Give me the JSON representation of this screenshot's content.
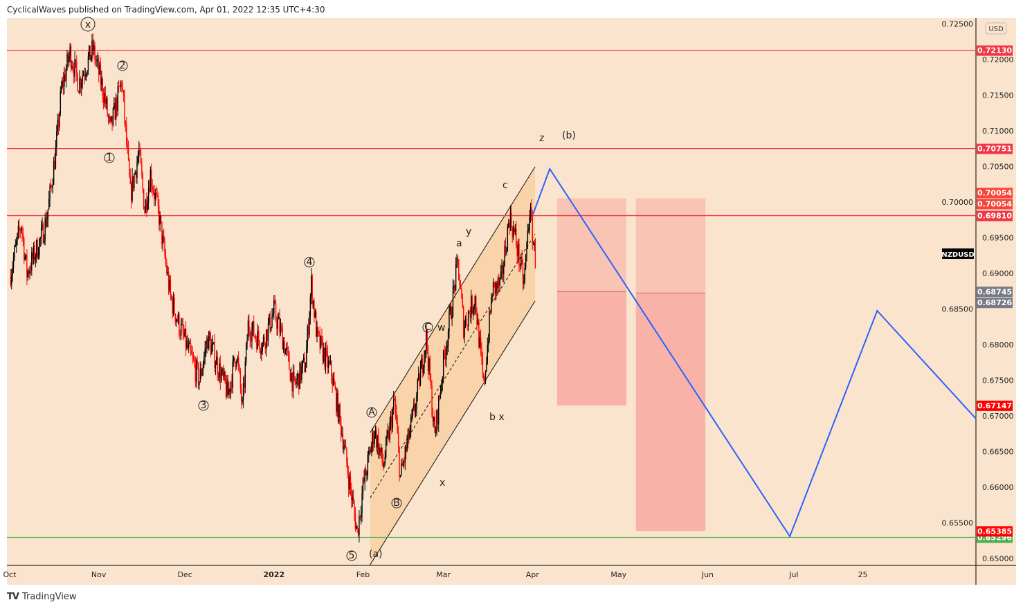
{
  "header": {
    "title": "CyclicalWaves published on TradingView.com, Apr 01, 2022 12:35 UTC+4:30"
  },
  "footer": {
    "brand": "TradingView"
  },
  "colors": {
    "bg": "#fbe4cd",
    "up": "#000000",
    "down": "#ff0000",
    "hline": "#f23645",
    "support": "#4caf50",
    "forecast": "#2962ff",
    "box": "#f8a9a0",
    "channel": "#f9cfa3"
  },
  "chart_data": {
    "type": "candlestick",
    "symbol": "NZDUSD",
    "currency": "USD",
    "ylim": [
      0.6485,
      0.7255
    ],
    "y_ticks": [
      0.725,
      0.72,
      0.715,
      0.71,
      0.705,
      0.7,
      0.695,
      0.69,
      0.685,
      0.68,
      0.675,
      0.67,
      0.665,
      0.66,
      0.655,
      0.65
    ],
    "y_tick_labels": [
      "0.72500",
      "0.72000",
      "0.71500",
      "0.71000",
      "0.70500",
      "0.70000",
      "0.69500",
      "0.69000",
      "0.68500",
      "0.68000",
      "0.67500",
      "0.67000",
      "0.66500",
      "0.66000",
      "0.65500",
      "0.65000"
    ],
    "x_ticks": [
      {
        "day": 0,
        "label": "Oct"
      },
      {
        "day": 31,
        "label": "Nov"
      },
      {
        "day": 61,
        "label": "Dec"
      },
      {
        "day": 92,
        "label": "2022"
      },
      {
        "day": 123,
        "label": "Feb"
      },
      {
        "day": 151,
        "label": "Mar"
      },
      {
        "day": 182,
        "label": "Apr"
      },
      {
        "day": 212,
        "label": "May"
      },
      {
        "day": 243,
        "label": "Jun"
      },
      {
        "day": 273,
        "label": "Jul"
      },
      {
        "day": 297,
        "label": "25"
      }
    ],
    "x_unit": "days since Oct 1, 2021",
    "price_path": [
      [
        0,
        0.6895
      ],
      [
        4,
        0.697
      ],
      [
        6,
        0.69
      ],
      [
        11,
        0.695
      ],
      [
        13,
        0.698
      ],
      [
        16,
        0.707
      ],
      [
        18,
        0.7157
      ],
      [
        21,
        0.721
      ],
      [
        24,
        0.7167
      ],
      [
        29,
        0.7215
      ],
      [
        33,
        0.7148
      ],
      [
        35,
        0.71
      ],
      [
        39,
        0.717
      ],
      [
        42,
        0.701
      ],
      [
        45,
        0.707
      ],
      [
        47,
        0.699
      ],
      [
        49,
        0.704
      ],
      [
        52,
        0.698
      ],
      [
        56,
        0.6866
      ],
      [
        59,
        0.6827
      ],
      [
        66,
        0.675
      ],
      [
        69,
        0.681
      ],
      [
        76,
        0.673
      ],
      [
        79,
        0.679
      ],
      [
        81,
        0.671
      ],
      [
        83,
        0.6827
      ],
      [
        88,
        0.68
      ],
      [
        92,
        0.6847
      ],
      [
        95,
        0.681
      ],
      [
        99,
        0.674
      ],
      [
        103,
        0.6775
      ],
      [
        105,
        0.6885
      ],
      [
        107,
        0.681
      ],
      [
        112,
        0.676
      ],
      [
        116,
        0.667
      ],
      [
        118,
        0.6614
      ],
      [
        121,
        0.6536
      ],
      [
        123,
        0.66
      ],
      [
        127,
        0.668
      ],
      [
        130,
        0.663
      ],
      [
        134,
        0.672
      ],
      [
        136,
        0.6614
      ],
      [
        141,
        0.671
      ],
      [
        145,
        0.681
      ],
      [
        148,
        0.667
      ],
      [
        151,
        0.6775
      ],
      [
        156,
        0.6915
      ],
      [
        158,
        0.6827
      ],
      [
        162,
        0.6866
      ],
      [
        165,
        0.674
      ],
      [
        168,
        0.6876
      ],
      [
        171,
        0.6885
      ],
      [
        174,
        0.698
      ],
      [
        176,
        0.695
      ],
      [
        179,
        0.6885
      ],
      [
        181,
        0.699
      ],
      [
        183,
        0.692
      ]
    ],
    "horizontal_levels": [
      {
        "price": 0.7213,
        "label": "0.72130",
        "color": "#f23645"
      },
      {
        "price": 0.70751,
        "label": "0.70751",
        "color": "#f23645"
      },
      {
        "price": 0.6981,
        "label": "0.69810",
        "color": "#f23645"
      },
      {
        "price": 0.65296,
        "label": "0.65296",
        "color": "#4caf50"
      }
    ],
    "price_tags": [
      {
        "price": 0.70054,
        "label": "0.70054",
        "color": "#f7453a",
        "offset": -8
      },
      {
        "price": 0.70054,
        "label": "0.70054",
        "color": "#f7453a",
        "offset": 8
      },
      {
        "price": 0.68745,
        "label": "0.68745",
        "color": "#787b86",
        "offset": 0
      },
      {
        "price": 0.68726,
        "label": "0.68726",
        "color": "#787b86",
        "offset": 14
      },
      {
        "price": 0.67147,
        "label": "0.67147",
        "color": "#ff0000",
        "offset": 0
      },
      {
        "price": 0.65385,
        "label": "0.65385",
        "color": "#ff0000",
        "offset": 0
      }
    ],
    "channel": {
      "start_day": 125.5,
      "end_day": 182.9,
      "upper": [
        0.66767,
        0.70495
      ],
      "middle": [
        0.6585,
        0.69553
      ],
      "lower": [
        0.64913,
        0.68612
      ]
    },
    "forecast_path": [
      [
        182.2,
        0.6983
      ],
      [
        188,
        0.70466
      ],
      [
        271.6,
        0.6531
      ],
      [
        302,
        0.68476
      ],
      [
        336.4,
        0.66961
      ]
    ],
    "boxes": [
      {
        "start_day": 190.6,
        "end_day": 214.7,
        "top": 0.70054,
        "mid": 0.68745,
        "bottom": 0.67147
      },
      {
        "start_day": 218,
        "end_day": 242.2,
        "top": 0.70054,
        "mid": 0.68726,
        "bottom": 0.65385
      }
    ],
    "wave_labels": [
      {
        "text": "x",
        "circled": true
      },
      {
        "text": "2",
        "circled": true
      },
      {
        "text": "1",
        "circled": true
      },
      {
        "text": "3",
        "circled": true
      },
      {
        "text": "4",
        "circled": true
      },
      {
        "text": "5",
        "circled": true
      },
      {
        "text": "(a)",
        "circled": false
      },
      {
        "text": "A",
        "circled": true
      },
      {
        "text": "B",
        "circled": true
      },
      {
        "text": "C",
        "circled": true
      },
      {
        "text": "w",
        "circled": false
      },
      {
        "text": "x",
        "circled": false
      },
      {
        "text": "a",
        "circled": false
      },
      {
        "text": "y",
        "circled": false
      },
      {
        "text": "c",
        "circled": false
      },
      {
        "text": "b x",
        "circled": false
      },
      {
        "text": "z",
        "circled": false
      },
      {
        "text": "(b)",
        "circled": false
      }
    ]
  }
}
